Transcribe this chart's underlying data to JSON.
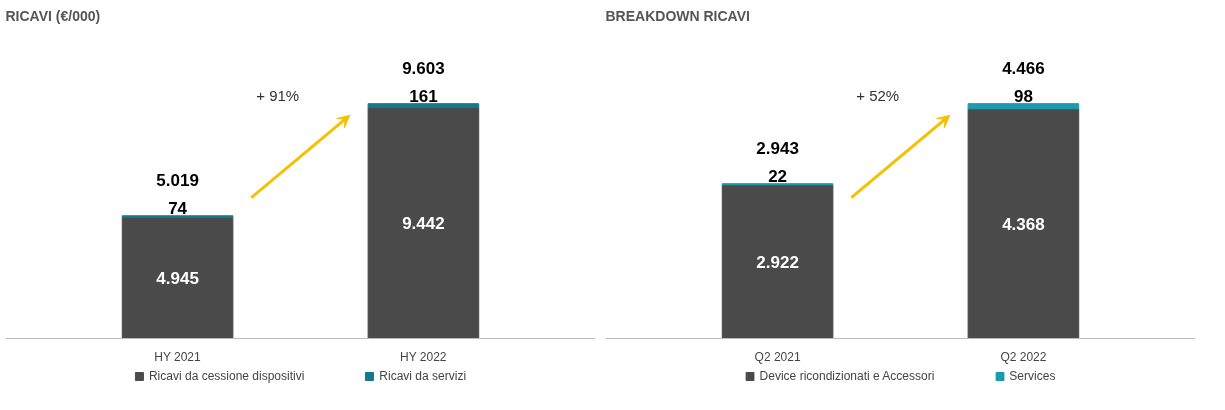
{
  "chart_data": [
    {
      "type": "bar",
      "title": "RICAVI (€/000)",
      "categories": [
        "HY 2021",
        "HY 2022"
      ],
      "stacked": true,
      "legend": "bottom",
      "grid": false,
      "annotations": [
        "+ 91%"
      ],
      "totals": [
        "5.019",
        "9.603"
      ],
      "series": [
        {
          "name": "Ricavi da cessione dispositivi",
          "color": "#4a4a4a",
          "values": [
            4945,
            9442
          ],
          "value_labels": [
            "4.945",
            "9.442"
          ]
        },
        {
          "name": "Ricavi da servizi",
          "color": "#17788a",
          "values": [
            74,
            161
          ],
          "value_labels": [
            "74",
            "161"
          ]
        }
      ]
    },
    {
      "type": "bar",
      "title": "BREAKDOWN RICAVI",
      "categories": [
        "Q2 2021",
        "Q2 2022"
      ],
      "stacked": true,
      "legend": "bottom",
      "grid": false,
      "annotations": [
        "+ 52%"
      ],
      "totals": [
        "2.943",
        "4.466"
      ],
      "series": [
        {
          "name": "Device ricondizionati e Accessori",
          "color": "#4a4a4a",
          "values": [
            2922,
            4368
          ],
          "value_labels": [
            "2.922",
            "4.368"
          ]
        },
        {
          "name": "Services",
          "color": "#1a9bb0",
          "values": [
            22,
            98
          ],
          "value_labels": [
            "22",
            "98"
          ]
        }
      ]
    }
  ]
}
